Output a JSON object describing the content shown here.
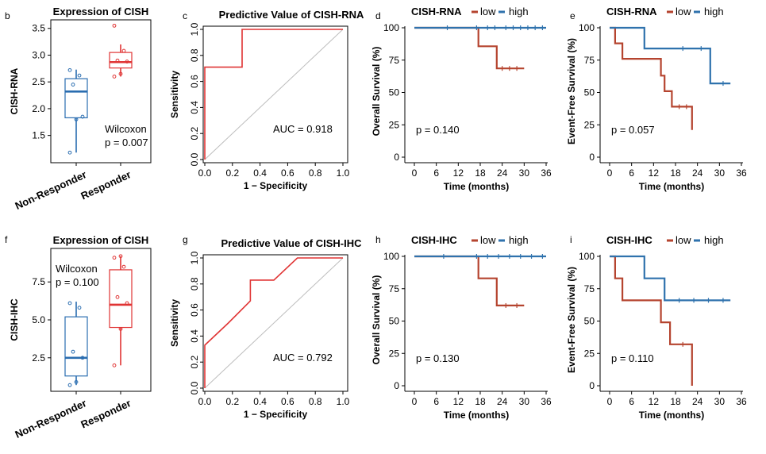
{
  "colors": {
    "blue": "#2a6db0",
    "red": "#e03434",
    "km_blue": "#2f72ad",
    "km_red": "#b5442f",
    "diag": "#bdbdbd",
    "black": "#000000"
  },
  "chart_data": [
    {
      "panel": "b",
      "type": "box",
      "title": "Expression of CISH",
      "ylabel": "CISH-RNA",
      "categories": [
        "Non-Responder",
        "Responder"
      ],
      "ylim": [
        1.05,
        3.6
      ],
      "yticks": [
        "1.5",
        "2.0",
        "2.5",
        "3.0",
        "3.5"
      ],
      "boxes": [
        {
          "name": "Non-Responder",
          "color": "blue",
          "min": 1.18,
          "q1": 1.83,
          "median": 2.32,
          "q3": 2.56,
          "max": 2.73,
          "points": [
            1.18,
            1.8,
            1.85,
            2.45,
            2.62,
            2.72
          ]
        },
        {
          "name": "Responder",
          "color": "red",
          "min": 2.6,
          "q1": 2.76,
          "median": 2.87,
          "q3": 3.05,
          "max": 3.2,
          "points": [
            2.6,
            2.65,
            2.88,
            2.9,
            3.08,
            3.55
          ]
        }
      ],
      "annotation": [
        "Wilcoxon",
        "p = 0.007"
      ]
    },
    {
      "panel": "c",
      "type": "roc",
      "title": "Predictive Value of CISH-RNA",
      "xlabel": "1 − Specificity",
      "ylabel": "Sensitivity",
      "xticks": [
        "0.0",
        "0.2",
        "0.4",
        "0.6",
        "0.8",
        "1.0"
      ],
      "yticks": [
        "0.0",
        "0.2",
        "0.4",
        "0.6",
        "0.8",
        "1.0"
      ],
      "curve": [
        [
          0,
          0
        ],
        [
          0,
          0.71
        ],
        [
          0.27,
          0.71
        ],
        [
          0.27,
          1.0
        ],
        [
          1.0,
          1.0
        ]
      ],
      "annotation": "AUC = 0.918"
    },
    {
      "panel": "d",
      "type": "survival",
      "title": "CISH-RNA",
      "legend": [
        "low",
        "high"
      ],
      "xlabel": "Time (months)",
      "ylabel": "Overall Survival (%)",
      "xticks": [
        "0",
        "6",
        "12",
        "18",
        "24",
        "30",
        "36"
      ],
      "yticks": [
        "0",
        "25",
        "50",
        "75",
        "100"
      ],
      "series": [
        {
          "name": "low",
          "color": "km_red",
          "steps": [
            [
              0,
              100
            ],
            [
              17.5,
              85.7
            ],
            [
              22.5,
              68.6
            ],
            [
              30,
              68.6
            ]
          ],
          "censors": [
            [
              24,
              68.6
            ],
            [
              26,
              68.6
            ],
            [
              28,
              68.6
            ]
          ]
        },
        {
          "name": "high",
          "color": "km_blue",
          "steps": [
            [
              0,
              100
            ],
            [
              36,
              100
            ]
          ],
          "censors": [
            [
              9,
              100
            ],
            [
              17,
              100
            ],
            [
              20,
              100
            ],
            [
              22,
              100
            ],
            [
              25,
              100
            ],
            [
              27,
              100
            ],
            [
              29,
              100
            ],
            [
              31,
              100
            ],
            [
              33,
              100
            ],
            [
              35,
              100
            ]
          ]
        }
      ],
      "annotation": "p = 0.140"
    },
    {
      "panel": "e",
      "type": "survival",
      "title": "CISH-RNA",
      "legend": [
        "low",
        "high"
      ],
      "xlabel": "Time (months)",
      "ylabel": "Event-Free Survival (%)",
      "xticks": [
        "0",
        "6",
        "12",
        "18",
        "24",
        "30",
        "36"
      ],
      "yticks": [
        "0",
        "25",
        "50",
        "75",
        "100"
      ],
      "series": [
        {
          "name": "low",
          "color": "km_red",
          "steps": [
            [
              0,
              100
            ],
            [
              1.5,
              88
            ],
            [
              3.5,
              76
            ],
            [
              14,
              63
            ],
            [
              15,
              51
            ],
            [
              17,
              39
            ],
            [
              22.5,
              21
            ],
            [
              22.5,
              21
            ]
          ],
          "censors": [
            [
              19,
              39
            ],
            [
              21,
              39
            ]
          ]
        },
        {
          "name": "high",
          "color": "km_blue",
          "steps": [
            [
              0,
              100
            ],
            [
              9.5,
              84
            ],
            [
              27.5,
              57
            ],
            [
              33,
              57
            ]
          ],
          "censors": [
            [
              20,
              84
            ],
            [
              25,
              84
            ],
            [
              31,
              57
            ]
          ]
        }
      ],
      "annotation": "p = 0.057"
    },
    {
      "panel": "f",
      "type": "box",
      "title": "Expression of CISH",
      "ylabel": "CISH-IHC",
      "categories": [
        "Non-Responder",
        "Responder"
      ],
      "ylim": [
        0.5,
        9.5
      ],
      "yticks": [
        "2.5",
        "5.0",
        "7.5"
      ],
      "boxes": [
        {
          "name": "Non-Responder",
          "color": "blue",
          "min": 0.7,
          "q1": 1.3,
          "median": 2.5,
          "q3": 5.2,
          "max": 6.2,
          "points": [
            0.7,
            0.9,
            2.5,
            2.9,
            5.8,
            6.1
          ]
        },
        {
          "name": "Responder",
          "color": "red",
          "min": 2.0,
          "q1": 4.5,
          "median": 6.0,
          "q3": 8.3,
          "max": 9.2,
          "points": [
            2.0,
            4.4,
            6.1,
            6.5,
            8.5,
            9.1,
            9.2
          ]
        }
      ],
      "annotation": [
        "Wilcoxon",
        "p = 0.100"
      ]
    },
    {
      "panel": "g",
      "type": "roc",
      "title": "Predictive Value of CISH-IHC",
      "xlabel": "1 − Specificity",
      "ylabel": "Sensitivity",
      "xticks": [
        "0.0",
        "0.2",
        "0.4",
        "0.6",
        "0.8",
        "1.0"
      ],
      "yticks": [
        "0.0",
        "0.2",
        "0.4",
        "0.6",
        "0.8",
        "1.0"
      ],
      "curve": [
        [
          0,
          0
        ],
        [
          0,
          0.33
        ],
        [
          0.17,
          0.5
        ],
        [
          0.33,
          0.67
        ],
        [
          0.33,
          0.83
        ],
        [
          0.5,
          0.83
        ],
        [
          0.67,
          1.0
        ],
        [
          1.0,
          1.0
        ]
      ],
      "annotation": "AUC = 0.792"
    },
    {
      "panel": "h",
      "type": "survival",
      "title": "CISH-IHC",
      "legend": [
        "low",
        "high"
      ],
      "xlabel": "Time (months)",
      "ylabel": "Overall Survival (%)",
      "xticks": [
        "0",
        "6",
        "12",
        "18",
        "24",
        "30",
        "36"
      ],
      "yticks": [
        "0",
        "25",
        "50",
        "75",
        "100"
      ],
      "series": [
        {
          "name": "low",
          "color": "km_red",
          "steps": [
            [
              0,
              100
            ],
            [
              17.5,
              83
            ],
            [
              22.5,
              62
            ],
            [
              30,
              62
            ]
          ],
          "censors": [
            [
              25,
              62
            ],
            [
              28,
              62
            ]
          ]
        },
        {
          "name": "high",
          "color": "km_blue",
          "steps": [
            [
              0,
              100
            ],
            [
              36,
              100
            ]
          ],
          "censors": [
            [
              8,
              100
            ],
            [
              17,
              100
            ],
            [
              20,
              100
            ],
            [
              23,
              100
            ],
            [
              26,
              100
            ],
            [
              29,
              100
            ],
            [
              32,
              100
            ],
            [
              35,
              100
            ]
          ]
        }
      ],
      "annotation": "p = 0.130"
    },
    {
      "panel": "i",
      "type": "survival",
      "title": "CISH-IHC",
      "legend": [
        "low",
        "high"
      ],
      "xlabel": "Time (months)",
      "ylabel": "Event-Free Survival (%)",
      "xticks": [
        "0",
        "6",
        "12",
        "18",
        "24",
        "30",
        "36"
      ],
      "yticks": [
        "0",
        "25",
        "50",
        "75",
        "100"
      ],
      "series": [
        {
          "name": "low",
          "color": "km_red",
          "steps": [
            [
              0,
              100
            ],
            [
              1.5,
              83
            ],
            [
              3.5,
              66
            ],
            [
              14,
              49
            ],
            [
              16.5,
              32
            ],
            [
              22.5,
              0
            ]
          ],
          "censors": [
            [
              20,
              32
            ]
          ]
        },
        {
          "name": "high",
          "color": "km_blue",
          "steps": [
            [
              0,
              100
            ],
            [
              9.5,
              83
            ],
            [
              15,
              66
            ],
            [
              33,
              66
            ]
          ],
          "censors": [
            [
              19,
              66
            ],
            [
              23,
              66
            ],
            [
              27,
              66
            ],
            [
              31,
              66
            ]
          ]
        }
      ],
      "annotation": "p = 0.110"
    }
  ]
}
